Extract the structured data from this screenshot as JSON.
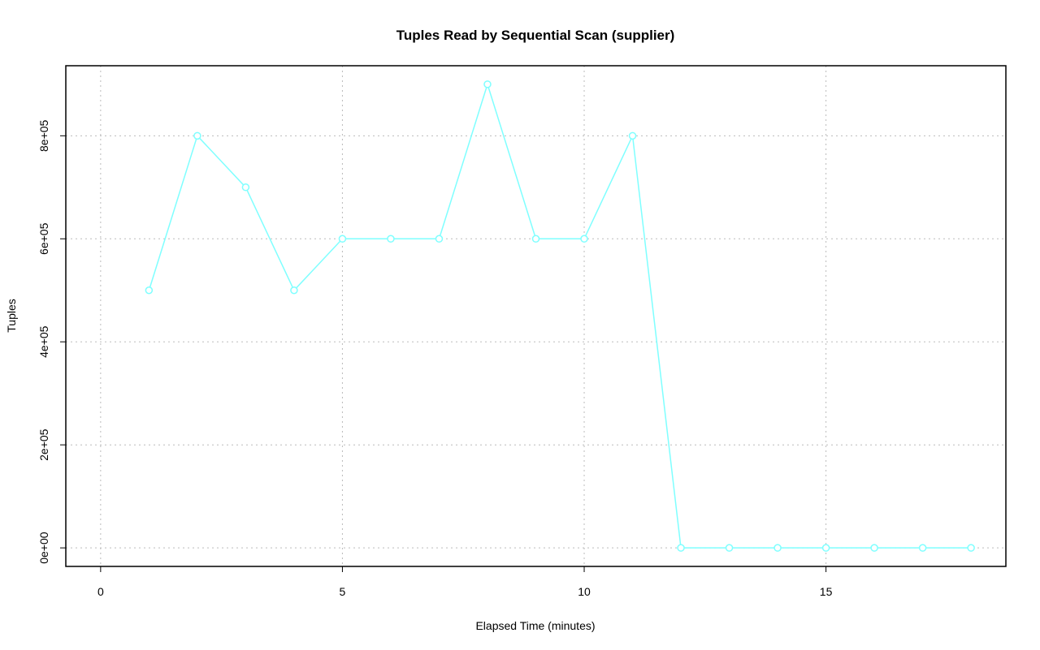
{
  "chart_data": {
    "type": "line",
    "title": "Tuples Read by Sequential Scan (supplier)",
    "x_label": "Elapsed Time (minutes)",
    "y_label": "Tuples",
    "x": [
      1,
      2,
      3,
      4,
      5,
      6,
      7,
      8,
      9,
      10,
      11,
      12,
      13,
      14,
      15,
      16,
      17,
      18
    ],
    "series": [
      {
        "name": "supplier",
        "color": "#7fffff",
        "values": [
          500000,
          800000,
          700000,
          500000,
          600000,
          600000,
          600000,
          900000,
          600000,
          600000,
          800000,
          0,
          0,
          0,
          0,
          0,
          0,
          0
        ]
      }
    ],
    "xlim": [
      -0.72,
      18.72
    ],
    "ylim": [
      -36000,
      936000
    ],
    "xticks": [
      0,
      5,
      10,
      15
    ],
    "yticks": [
      {
        "value": 0,
        "label": "0e+00"
      },
      {
        "value": 200000,
        "label": "2e+05"
      },
      {
        "value": 400000,
        "label": "4e+05"
      },
      {
        "value": 600000,
        "label": "6e+05"
      },
      {
        "value": 800000,
        "label": "8e+05"
      }
    ],
    "grid": true
  }
}
